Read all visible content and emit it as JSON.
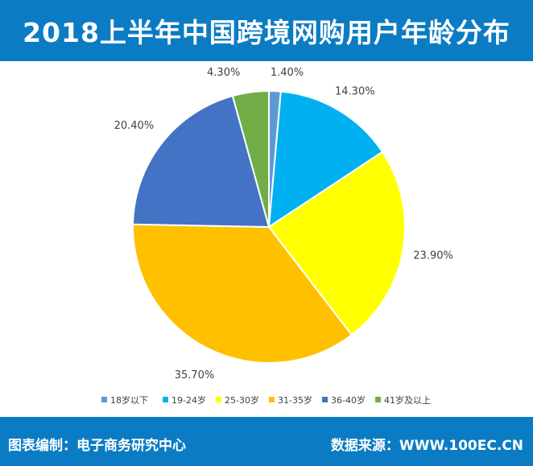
{
  "header": {
    "title": "2018上半年中国跨境网购用户年龄分布"
  },
  "footer": {
    "compiled_by": "图表编制：电子商务研究中心",
    "source": "数据来源：WWW.100EC.CN"
  },
  "colors": {
    "header_bg": "#0b7cc3",
    "footer_bg": "#0b7cc3"
  },
  "chart_data": {
    "type": "pie",
    "title": "",
    "categories": [
      "18岁以下",
      "19-24岁",
      "25-30岁",
      "31-35岁",
      "36-40岁",
      "41岁及以上"
    ],
    "values": [
      1.4,
      14.3,
      23.9,
      35.7,
      20.4,
      4.3
    ],
    "data_labels": [
      "1.40%",
      "14.30%",
      "23.90%",
      "35.70%",
      "20.40%",
      "4.30%"
    ],
    "colors": [
      "#5b9bd5",
      "#00b0f0",
      "#ffff00",
      "#ffc000",
      "#4472c4",
      "#70ad47"
    ],
    "start_angle": "12 o'clock",
    "direction": "clockwise",
    "legend_position": "bottom"
  }
}
